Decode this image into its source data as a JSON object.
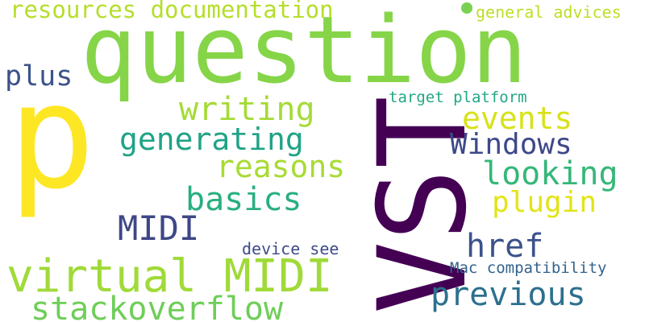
{
  "words": [
    {
      "id": "question",
      "text": "question",
      "color": "#86d549"
    },
    {
      "id": "p",
      "text": "p",
      "color": "#fde725"
    },
    {
      "id": "vst",
      "text": "VST",
      "color": "#440154"
    },
    {
      "id": "resources-documentation",
      "text": "resources documentation",
      "color": "#b5de2b"
    },
    {
      "id": "general-advices",
      "text": "general advices",
      "color": "#bddf26"
    },
    {
      "id": "plus",
      "text": "plus",
      "color": "#3b528b"
    },
    {
      "id": "writing",
      "text": "writing",
      "color": "#a5db36"
    },
    {
      "id": "target-platform",
      "text": "target platform",
      "color": "#22a785"
    },
    {
      "id": "events",
      "text": "events",
      "color": "#d8e219"
    },
    {
      "id": "generating",
      "text": "generating",
      "color": "#20a386"
    },
    {
      "id": "windows",
      "text": "Windows",
      "color": "#3e4989"
    },
    {
      "id": "reasons",
      "text": "reasons",
      "color": "#a8db34"
    },
    {
      "id": "looking",
      "text": "looking",
      "color": "#35b779"
    },
    {
      "id": "basics",
      "text": "basics",
      "color": "#29af7f"
    },
    {
      "id": "plugin",
      "text": "plugin",
      "color": "#e2e418"
    },
    {
      "id": "midi",
      "text": "MIDI",
      "color": "#3f4788"
    },
    {
      "id": "href",
      "text": "href",
      "color": "#3b528b"
    },
    {
      "id": "device-see",
      "text": "device see",
      "color": "#3e4a89"
    },
    {
      "id": "virtual-midi",
      "text": "virtual MIDI",
      "color": "#a0da39"
    },
    {
      "id": "mac-compatibility",
      "text": "Mac compatibility",
      "color": "#33638d"
    },
    {
      "id": "previous",
      "text": "previous",
      "color": "#2d708e"
    },
    {
      "id": "stackoverflow",
      "text": "stackoverflow",
      "color": "#6ece58"
    }
  ],
  "dot_color": "#7ad151"
}
